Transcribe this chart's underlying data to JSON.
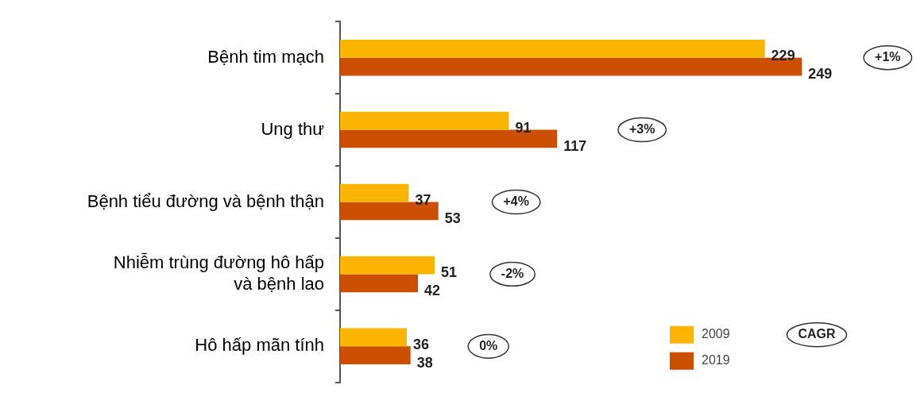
{
  "chart_data": {
    "type": "bar",
    "orientation": "horizontal",
    "categories": [
      "Bệnh tim mạch",
      "Ung thư",
      "Bệnh tiểu đường và bệnh thận",
      "Nhiễm trùng đường hô hấp\nvà bệnh lao",
      "Hô hấp mãn tính"
    ],
    "series": [
      {
        "name": "2009",
        "color": "#fbb400",
        "values": [
          229,
          91,
          37,
          51,
          36
        ]
      },
      {
        "name": "2019",
        "color": "#cc4e00",
        "values": [
          249,
          117,
          53,
          42,
          38
        ]
      }
    ],
    "data_labels": true,
    "legend": "bottom right",
    "tick_labels": "y",
    "annotations": [
      "+1%",
      "+3%",
      "+4%",
      "-2%",
      "0%",
      "CAGR"
    ]
  }
}
